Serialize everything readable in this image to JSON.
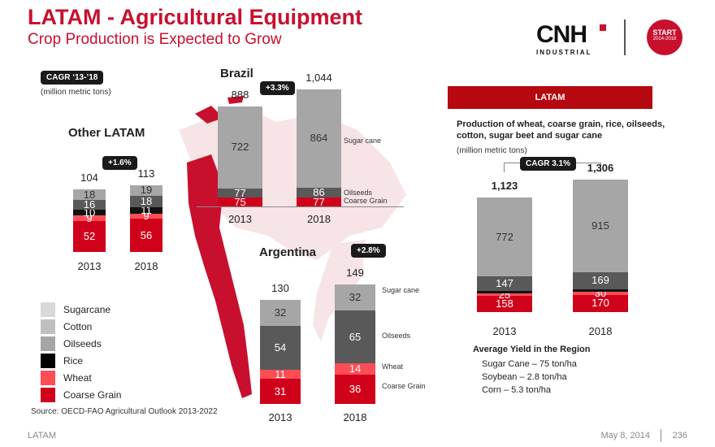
{
  "header": {
    "title": "LATAM - Agricultural Equipment",
    "subtitle": "Crop Production is Expected to Grow",
    "logo_text": "CNH",
    "logo_sub": "INDUSTRIAL",
    "badge_line1": "START",
    "badge_line2": "2014-2018"
  },
  "left": {
    "cagr_pill": "CAGR ‘13-’18",
    "units": "(million metric tons)",
    "source": "Source: OECD-FAO Agricultural Outlook 2013-2022"
  },
  "legend": [
    {
      "label": "Sugarcane",
      "color": "#d9d9d9"
    },
    {
      "label": "Cotton",
      "color": "#bfbfbf"
    },
    {
      "label": "Oilseeds",
      "color": "#a6a6a6"
    },
    {
      "label": "Rice",
      "color": "#000000"
    },
    {
      "label": "Wheat",
      "color": "#ff4d55"
    },
    {
      "label": "Coarse Grain",
      "color": "#d0021b"
    }
  ],
  "colors": {
    "brand_red": "#c8102e",
    "sugarcane_gray": "#a6a6a6",
    "oilseeds_dark": "#595959",
    "wheat_light_red": "#ff4d55",
    "coarse_grain_red": "#d0021b",
    "rice_black": "#111111",
    "cotton_light": "#bfbfbf",
    "map_red": "#c8102e",
    "map_pink": "#f7e4e6"
  },
  "chart_data": [
    {
      "id": "other_latam",
      "type": "bar",
      "title": "Other LATAM",
      "cagr": "+1.6%",
      "categories": [
        "2013",
        "2018"
      ],
      "totals": [
        "104",
        "113"
      ],
      "series": [
        {
          "name": "Coarse Grain",
          "values": [
            52,
            56
          ],
          "labels": [
            "52",
            "56"
          ],
          "color": "#d0021b"
        },
        {
          "name": "Wheat",
          "values": [
            9,
            9
          ],
          "labels": [
            "9",
            "9"
          ],
          "color": "#ff4d55"
        },
        {
          "name": "Rice",
          "values": [
            10,
            11
          ],
          "labels": [
            "10",
            "11"
          ],
          "color": "#111111"
        },
        {
          "name": "Oilseeds",
          "values": [
            16,
            18
          ],
          "labels": [
            "16",
            "18"
          ],
          "color": "#595959"
        },
        {
          "name": "Cotton",
          "values": [
            18,
            19
          ],
          "labels": [
            "18",
            "19"
          ],
          "color": "#a6a6a6"
        }
      ]
    },
    {
      "id": "brazil",
      "type": "bar",
      "title": "Brazil",
      "cagr": "+3.3%",
      "categories": [
        "2013",
        "2018"
      ],
      "totals": [
        "888",
        "1,044"
      ],
      "series": [
        {
          "name": "Coarse Grain",
          "values": [
            75,
            77
          ],
          "labels": [
            "75",
            "77"
          ],
          "color": "#d0021b"
        },
        {
          "name": "Oilseeds",
          "values": [
            77,
            86
          ],
          "labels": [
            "77",
            "86"
          ],
          "color": "#595959"
        },
        {
          "name": "Sugar cane",
          "values": [
            722,
            864
          ],
          "labels": [
            "722",
            "864"
          ],
          "color": "#a6a6a6"
        }
      ],
      "side_labels": [
        "Sugar cane",
        "Oilseeds",
        "Coarse Grain"
      ]
    },
    {
      "id": "argentina",
      "type": "bar",
      "title": "Argentina",
      "cagr": "+2.8%",
      "categories": [
        "2013",
        "2018"
      ],
      "totals": [
        "130",
        "149"
      ],
      "series": [
        {
          "name": "Coarse Grain",
          "values": [
            31,
            36
          ],
          "labels": [
            "31",
            "36"
          ],
          "color": "#d0021b"
        },
        {
          "name": "Wheat",
          "values": [
            11,
            14
          ],
          "labels": [
            "11",
            "14"
          ],
          "color": "#ff4d55"
        },
        {
          "name": "Oilseeds",
          "values": [
            54,
            65
          ],
          "labels": [
            "54",
            "65"
          ],
          "color": "#595959"
        },
        {
          "name": "Sugar cane",
          "values": [
            32,
            32
          ],
          "labels": [
            "32",
            "32"
          ],
          "color": "#a6a6a6"
        }
      ],
      "side_labels": [
        "Sugar cane",
        "Oilseeds",
        "Wheat",
        "Coarse Grain"
      ]
    },
    {
      "id": "latam_total",
      "type": "bar",
      "title": "LATAM",
      "subtitle": "Production of wheat, coarse grain, rice, oilseeds, cotton, sugar beet and sugar cane",
      "units": "(million metric tons)",
      "cagr": "CAGR 3.1%",
      "categories": [
        "2013",
        "2018"
      ],
      "totals": [
        "1,123",
        "1,306"
      ],
      "series": [
        {
          "name": "Coarse Grain",
          "values": [
            158,
            170
          ],
          "labels": [
            "158",
            "170"
          ],
          "color": "#d0021b"
        },
        {
          "name": "Wheat",
          "values": [
            25,
            30
          ],
          "labels": [
            "25",
            "30"
          ],
          "color": "#ff4d55"
        },
        {
          "name": "Rice",
          "values": [
            21,
            22
          ],
          "labels": [
            "",
            ""
          ],
          "color": "#111111"
        },
        {
          "name": "Oilseeds",
          "values": [
            147,
            169
          ],
          "labels": [
            "147",
            "169"
          ],
          "color": "#595959"
        },
        {
          "name": "Sugar cane",
          "values": [
            772,
            915
          ],
          "labels": [
            "772",
            "915"
          ],
          "color": "#a6a6a6"
        }
      ]
    }
  ],
  "yield": {
    "title": "Average Yield in the Region",
    "items": [
      "Sugar Cane – 75 ton/ha",
      "Soybean – 2.8 ton/ha",
      "Corn – 5.3 ton/ha"
    ]
  },
  "footer": {
    "left": "LATAM",
    "date": "May 8, 2014",
    "page": "236"
  }
}
